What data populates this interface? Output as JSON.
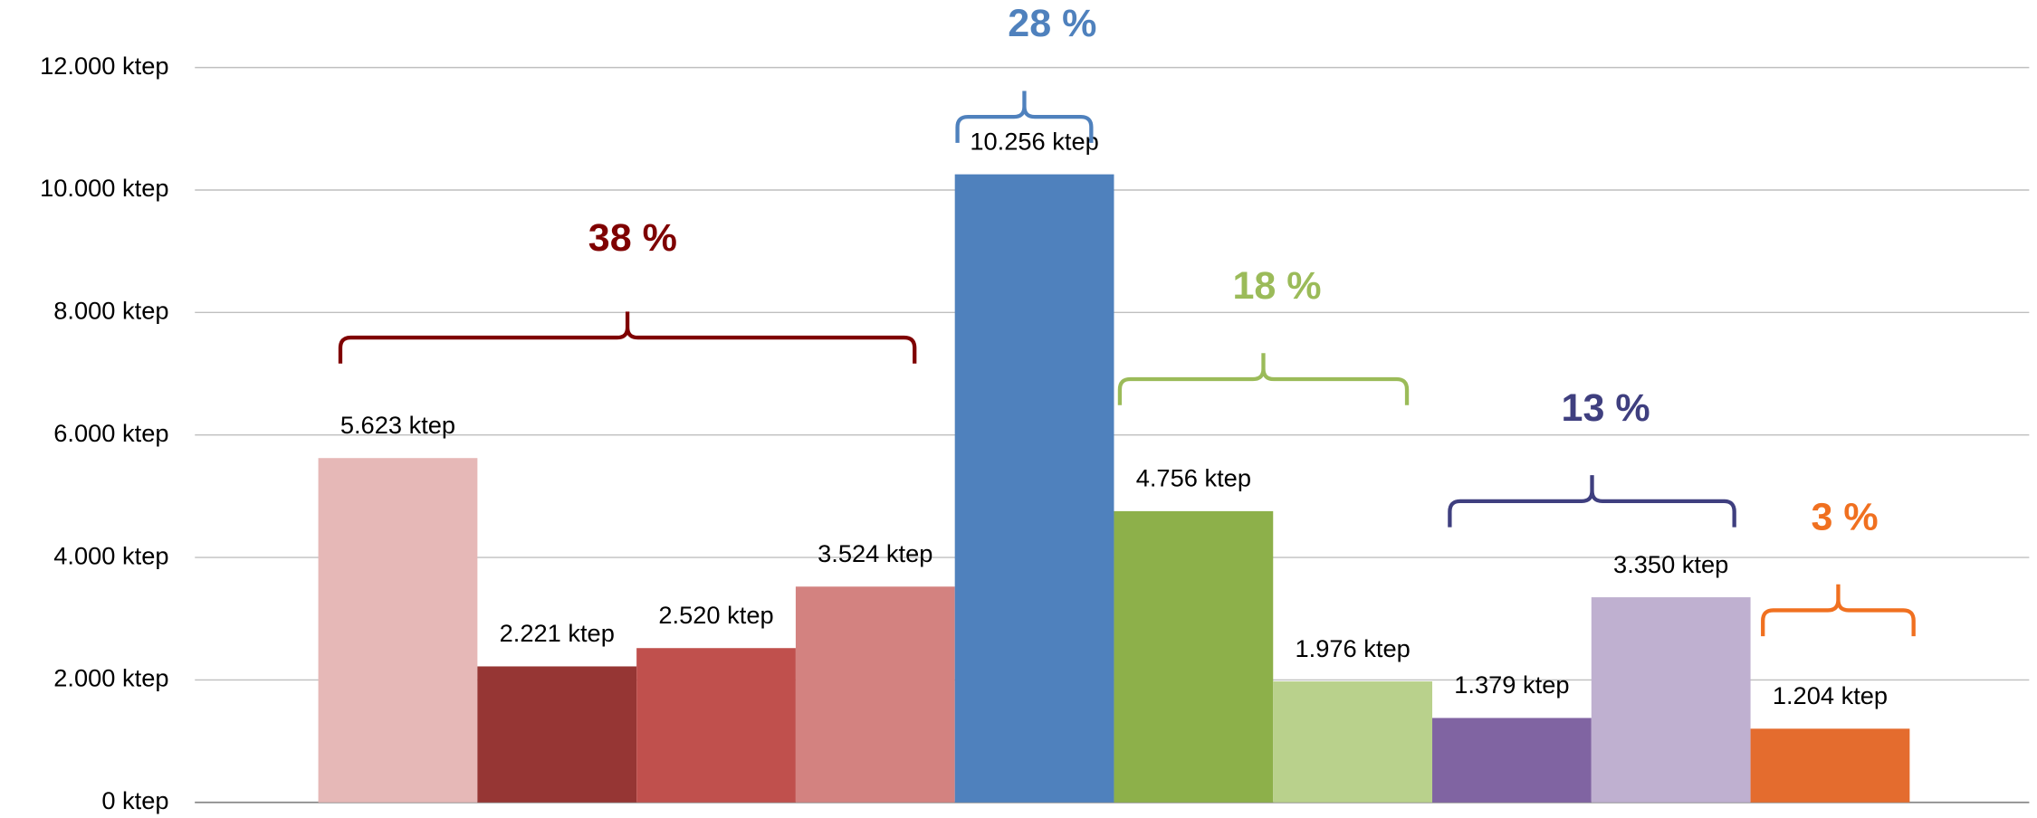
{
  "chart_data": {
    "type": "bar",
    "categories": [
      null,
      null,
      null,
      null,
      null,
      null,
      null,
      null,
      null,
      null
    ],
    "values": [
      5623,
      2221,
      2520,
      3524,
      10256,
      4756,
      1976,
      1379,
      3350,
      1204
    ],
    "value_labels": [
      "5.623 ktep",
      "2.221 ktep",
      "2.520 ktep",
      "3.524 ktep",
      "10.256 ktep",
      "4.756 ktep",
      "1.976 ktep",
      "1.379 ktep",
      "3.350 ktep",
      "1.204 ktep"
    ],
    "colors": [
      "#e6b8b7",
      "#963634",
      "#c0504d",
      "#d38280",
      "#4f81bd",
      "#8db04a",
      "#b9d18c",
      "#8064a2",
      "#bfb0d0",
      "#e46c2e"
    ],
    "ylim": [
      0,
      12000
    ],
    "yticks": [
      {
        "value": 0,
        "label": "0 ktep"
      },
      {
        "value": 2000,
        "label": "2.000 ktep"
      },
      {
        "value": 4000,
        "label": "4.000 ktep"
      },
      {
        "value": 6000,
        "label": "6.000 ktep"
      },
      {
        "value": 8000,
        "label": "8.000 ktep"
      },
      {
        "value": 10000,
        "label": "10.000 ktep"
      },
      {
        "value": 12000,
        "label": "12.000 ktep"
      }
    ],
    "grid": true,
    "annotations": [
      {
        "text": "38 %",
        "color": "#7f0000"
      },
      {
        "text": "28 %",
        "color": "#4f81bd"
      },
      {
        "text": "18 %",
        "color": "#9bbb59"
      },
      {
        "text": "13 %",
        "color": "#3f3f7f"
      },
      {
        "text": "3 %",
        "color": "#f07020"
      }
    ]
  }
}
